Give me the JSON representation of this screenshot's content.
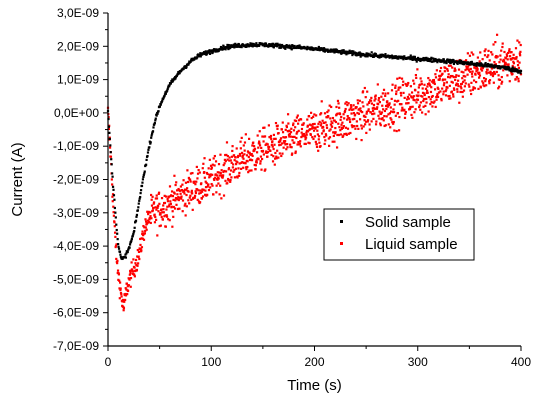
{
  "chart_data": {
    "type": "scatter",
    "xlabel": "Time (s)",
    "ylabel": "Current (A)",
    "xlim": [
      0,
      400
    ],
    "ylim": [
      -7e-09,
      3e-09
    ],
    "x_ticks": [
      0,
      100,
      200,
      300,
      400
    ],
    "x_tick_labels": [
      "0",
      "100",
      "200",
      "300",
      "400"
    ],
    "y_ticks": [
      3e-09,
      2e-09,
      1e-09,
      0,
      -1e-09,
      -2e-09,
      -3e-09,
      -4e-09,
      -5e-09,
      -6e-09,
      -7e-09
    ],
    "y_tick_labels": [
      "3,0E-09",
      "2,0E-09",
      "1,0E-09",
      "0,0E+00",
      "-1,0E-09",
      "-2,0E-09",
      "-3,0E-09",
      "-4,0E-09",
      "-5,0E-09",
      "-6,0E-09",
      "-7,0E-09"
    ],
    "grid": false,
    "legend_position": "right-middle",
    "series": [
      {
        "name": "Solid sample",
        "color": "#000000",
        "x": [
          0,
          2,
          5,
          8,
          10,
          13,
          16,
          20,
          25,
          30,
          35,
          40,
          45,
          50,
          55,
          60,
          70,
          80,
          90,
          100,
          110,
          120,
          130,
          140,
          150,
          160,
          170,
          180,
          200,
          220,
          240,
          260,
          280,
          300,
          320,
          340,
          360,
          380,
          400
        ],
        "y": [
          0.0,
          -9e-10,
          -2.2e-09,
          -3.3e-09,
          -4e-09,
          -4.4e-09,
          -4.35e-09,
          -4.1e-09,
          -3.6e-09,
          -2.7e-09,
          -1.8e-09,
          -1e-09,
          -3e-10,
          2e-10,
          5.5e-10,
          8.5e-10,
          1.25e-09,
          1.55e-09,
          1.75e-09,
          1.85e-09,
          1.95e-09,
          2e-09,
          2.03e-09,
          2.05e-09,
          2.05e-09,
          2.03e-09,
          2e-09,
          1.98e-09,
          1.92e-09,
          1.85e-09,
          1.78e-09,
          1.72e-09,
          1.67e-09,
          1.62e-09,
          1.58e-09,
          1.52e-09,
          1.45e-09,
          1.38e-09,
          1.25e-09
        ]
      },
      {
        "name": "Liquid sample",
        "color": "#ff0000",
        "x": [
          0,
          3,
          6,
          9,
          12,
          15,
          18,
          22,
          26,
          30,
          35,
          40,
          50,
          60,
          70,
          80,
          90,
          100,
          110,
          120,
          140,
          160,
          180,
          200,
          220,
          240,
          260,
          280,
          300,
          320,
          340,
          360,
          380,
          400
        ],
        "y": [
          0.0,
          -1.5e-09,
          -3.3e-09,
          -4.6e-09,
          -5.3e-09,
          -5.9e-09,
          -5.3e-09,
          -4.9e-09,
          -4.6e-09,
          -4.3e-09,
          -3.5e-09,
          -3.1e-09,
          -2.9e-09,
          -2.7e-09,
          -2.5e-09,
          -2.3e-09,
          -2.15e-09,
          -2e-09,
          -1.8e-09,
          -1.55e-09,
          -1.25e-09,
          -1e-09,
          -7.5e-10,
          -5.5e-10,
          -3e-10,
          -1e-10,
          1e-10,
          3e-10,
          5.5e-10,
          8e-10,
          1e-09,
          1.25e-09,
          1.45e-09,
          1.7e-09
        ]
      }
    ]
  }
}
